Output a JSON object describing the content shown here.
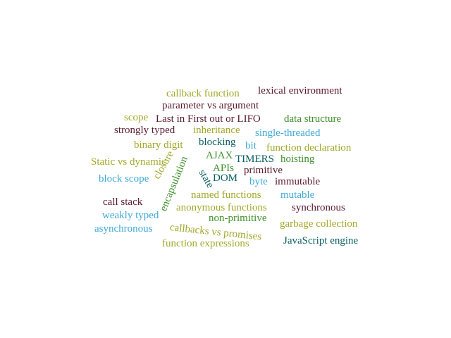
{
  "words": [
    {
      "text": "callback function",
      "color": "#a2a82a"
    },
    {
      "text": "lexical environment",
      "color": "#5a1a2e"
    },
    {
      "text": "parameter vs argument",
      "color": "#5a1a2e"
    },
    {
      "text": "scope",
      "color": "#a2a82a"
    },
    {
      "text": "Last in First out or LIFO",
      "color": "#5a1a2e"
    },
    {
      "text": "data structure",
      "color": "#3f8f2a"
    },
    {
      "text": "strongly typed",
      "color": "#5a1a2e"
    },
    {
      "text": "inheritance",
      "color": "#a2a82a"
    },
    {
      "text": "single-threaded",
      "color": "#3fa9d6"
    },
    {
      "text": "binary digit",
      "color": "#a2a82a"
    },
    {
      "text": "blocking",
      "color": "#0b5e62"
    },
    {
      "text": "bit",
      "color": "#3fa9d6"
    },
    {
      "text": "function declaration",
      "color": "#a2a82a"
    },
    {
      "text": "Static vs dynamic",
      "color": "#a2a82a"
    },
    {
      "text": "AJAX",
      "color": "#3f8f2a"
    },
    {
      "text": "TIMERS",
      "color": "#0b5e62"
    },
    {
      "text": "hoisting",
      "color": "#3f8f2a"
    },
    {
      "text": "block scope",
      "color": "#3fa9d6"
    },
    {
      "text": "APIs",
      "color": "#3f8f2a"
    },
    {
      "text": "primitive",
      "color": "#5a1a2e"
    },
    {
      "text": "DOM",
      "color": "#0b5e62"
    },
    {
      "text": "byte",
      "color": "#3fa9d6"
    },
    {
      "text": "immutable",
      "color": "#5a1a2e"
    },
    {
      "text": "closure",
      "color": "#a2a82a"
    },
    {
      "text": "encapsulation",
      "color": "#3f8f2a"
    },
    {
      "text": "state",
      "color": "#0b5e62"
    },
    {
      "text": "named functions",
      "color": "#a2a82a"
    },
    {
      "text": "mutable",
      "color": "#3fa9d6"
    },
    {
      "text": "call stack",
      "color": "#5a1a2e"
    },
    {
      "text": "anonymous functions",
      "color": "#a2a82a"
    },
    {
      "text": "synchronous",
      "color": "#5a1a2e"
    },
    {
      "text": "weakly typed",
      "color": "#3fa9d6"
    },
    {
      "text": "non-primitive",
      "color": "#3f8f2a"
    },
    {
      "text": "asynchronous",
      "color": "#3fa9d6"
    },
    {
      "text": "callbacks vs promises",
      "color": "#a2a82a"
    },
    {
      "text": "garbage collection",
      "color": "#a2a82a"
    },
    {
      "text": "function expressions",
      "color": "#a2a82a"
    },
    {
      "text": "JavaScript engine",
      "color": "#0b5e62"
    }
  ]
}
